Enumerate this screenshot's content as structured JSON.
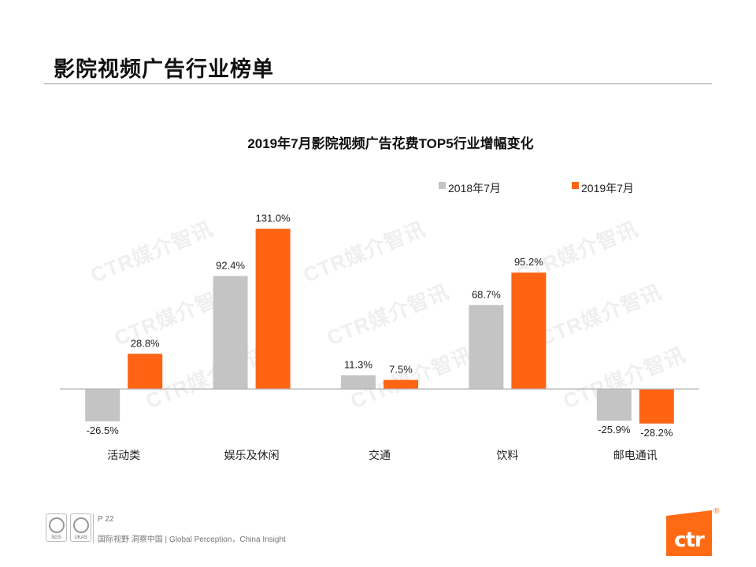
{
  "page": {
    "title": "影院视频广告行业榜单"
  },
  "chart_data": {
    "type": "bar",
    "title": "2019年7月影院视频广告花费TOP5行业增幅变化",
    "categories": [
      "活动类",
      "娱乐及休闲",
      "交通",
      "饮料",
      "邮电通讯"
    ],
    "series": [
      {
        "name": "2018年7月",
        "values": [
          -26.5,
          92.4,
          11.3,
          68.7,
          -25.9
        ],
        "labels": [
          "-26.5%",
          "92.4%",
          "11.3%",
          "68.7%",
          "-25.9%"
        ],
        "color": "#c4c4c4"
      },
      {
        "name": "2019年7月",
        "values": [
          28.8,
          131.0,
          7.5,
          95.2,
          -28.2
        ],
        "labels": [
          "28.8%",
          "131.0%",
          "7.5%",
          "95.2%",
          "-28.2%"
        ],
        "color": "#ff6414"
      }
    ],
    "ylim": [
      -35,
      140
    ],
    "unit": "%",
    "grid": false,
    "legend_position": "top-right"
  },
  "watermark": "CTR媒介智讯",
  "footer": {
    "page_label": "P 22",
    "tagline": "国际视野 洞察中国 | Global Perception，China Insight",
    "seal_labels": [
      "SGS",
      "UKAS"
    ],
    "logo_text": "ctr",
    "logo_mark": "®"
  },
  "colors": {
    "accent": "#ff6414",
    "gray_bar": "#c4c4c4"
  }
}
